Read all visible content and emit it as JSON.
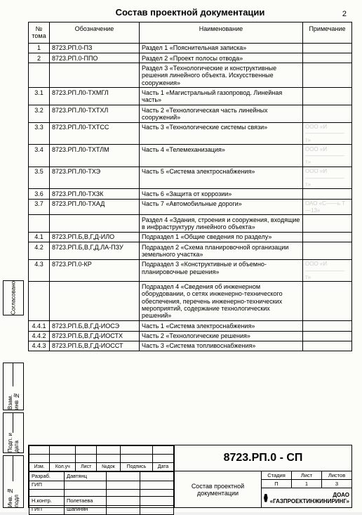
{
  "doc_title": "Состав проектной документации",
  "page_number": "2",
  "columns": {
    "num": "№ тома",
    "code": "Обозначение",
    "name": "Наименование",
    "note": "Примечание"
  },
  "rows": [
    {
      "n": "1",
      "c": "8723.РП.0-ПЗ",
      "t": "Раздел 1 «Пояснительная записка»",
      "p": ""
    },
    {
      "n": "2",
      "c": "8723.РП.0-ППО",
      "t": "Раздел 2 «Проект полосы отвода»",
      "p": ""
    },
    {
      "n": "",
      "c": "",
      "t": "Раздел 3 «Технологические и конструктивные решения линейного объекта. Искусственные сооружения»",
      "p": ""
    },
    {
      "n": "3.1",
      "c": "8723.РП.Л0-ТХМГЛ",
      "t": "Часть 1 «Магистральный газопровод. Линейная часть»",
      "p": ""
    },
    {
      "n": "3.2",
      "c": "8723.РП.Л0-ТХТХЛ",
      "t": "Часть 2 «Технологическая часть линейных сооружений»",
      "p": ""
    },
    {
      "n": "3.3",
      "c": "8723.РП.Л0-ТХТСС",
      "t": "Часть 3 «Технологические системы связи»",
      "p": "ООО «И———————т»"
    },
    {
      "n": "3.4",
      "c": "8723.РП.Л0-ТХТЛМ",
      "t": "Часть 4 «Телемеханизация»",
      "p": "ООО «И———————т»"
    },
    {
      "n": "3.5",
      "c": "8723.РП.Л0-ТХЭ",
      "t": "Часть 5 «Система электроснабжения»",
      "p": "ООО «И———————т»"
    },
    {
      "n": "3.6",
      "c": "8723.РП.Л0-ТХЗК",
      "t": "Часть 6 «Защита от коррозии»",
      "p": ""
    },
    {
      "n": "3.7",
      "c": "8723.РП.Л0-ТХАД",
      "t": "Часть 7 «Автомобильные дороги»",
      "p": "ОАО «С——ь Т—13»"
    },
    {
      "n": "",
      "c": "",
      "t": "Раздел 4 «Здания, строения и сооружения, входящие в инфраструктуру линейного объекта»",
      "p": ""
    },
    {
      "n": "4.1",
      "c": "8723.РП.Б,В,Г,Д-ИЛО",
      "t": "Подраздел 1 «Общие сведения по разделу»",
      "p": ""
    },
    {
      "n": "4.2",
      "c": "8723.РП.Б,В,Г,Д,ЛА-ПЗУ",
      "t": "Подраздел 2 «Схема планировочной организации земельного участка»",
      "p": ""
    },
    {
      "n": "4.3",
      "c": "8723.РП.0-КР",
      "t": "Подраздел 3 «Конструктивные и объемно-планировочные решения»",
      "p": "ООО «И———————т»"
    },
    {
      "n": "",
      "c": "",
      "t": "Подраздел 4 «Сведения об инженерном оборудовании, о сетях инженерно-технического обеспечения, перечень инженерно-технических мероприятий, содержание технологических решений»",
      "p": ""
    },
    {
      "n": "4.4.1",
      "c": "8723.РП.Б,В,Г,Д-ИОСЭ",
      "t": "Часть 1 «Система электроснабжения»",
      "p": ""
    },
    {
      "n": "4.4.2",
      "c": "8723.РП.Б,В,Г,Д-ИОСТХ",
      "t": "Часть 2 «Технологические решения»",
      "p": ""
    },
    {
      "n": "4.4.3",
      "c": "8723.РП.Б,В,Г,Д-ИОССТ",
      "t": "Часть 3 «Система топливоснабжения»",
      "p": ""
    }
  ],
  "stamp": {
    "top_small_cols": [
      "Изм.",
      "Кол.уч",
      "Лист",
      "№док",
      "Подпись",
      "Дата"
    ],
    "doc_code": "8723.РП.0 - СП",
    "roles": [
      {
        "r": "Разраб.",
        "n": "Давтянц"
      },
      {
        "r": "ГИП",
        "n": ""
      },
      {
        "r": "",
        "n": ""
      },
      {
        "r": "Н.контр.",
        "n": "Полетаева"
      },
      {
        "r": "ГИП",
        "n": "Шагинян"
      }
    ],
    "center_title": "Состав проектной документации",
    "br_cols": {
      "stage": "Стадия",
      "sheet": "Лист",
      "sheets": "Листов"
    },
    "br_vals": {
      "stage": "П",
      "sheet": "1",
      "sheets": "3"
    },
    "org": "ДОАО «ГАЗПРОЕКТИНЖИНИРИНГ»"
  },
  "side": {
    "inv": "Инв. № подл",
    "sig": "Подп. и дата",
    "vzam": "Взам. инв №",
    "sog": "Согласовано"
  }
}
